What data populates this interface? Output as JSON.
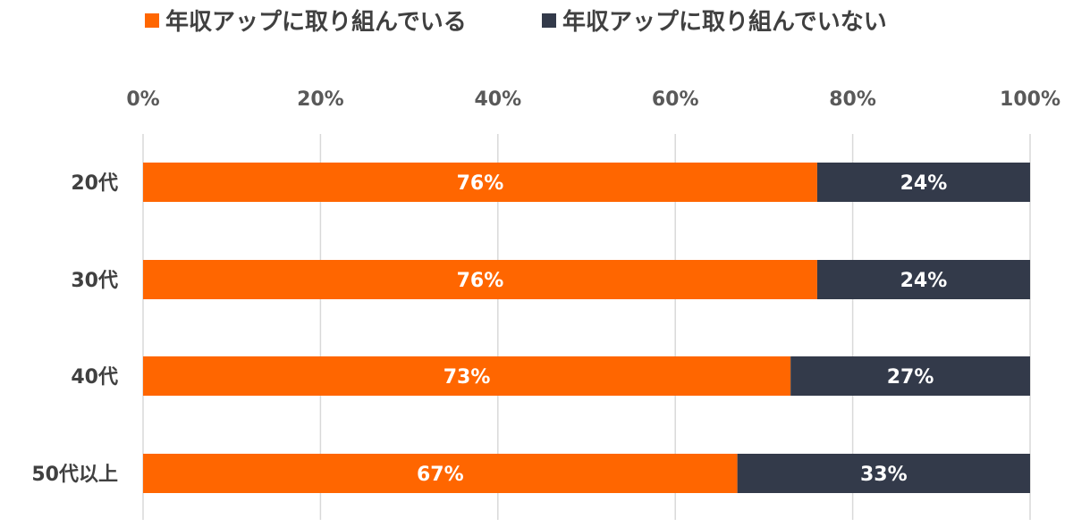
{
  "chart_data": {
    "type": "bar",
    "orientation": "horizontal",
    "stacked": true,
    "categories": [
      "20代",
      "30代",
      "40代",
      "50代以上"
    ],
    "series": [
      {
        "name": "年収アップに取り組んでいる",
        "values": [
          76,
          76,
          73,
          67
        ],
        "labels": [
          "76%",
          "76%",
          "73%",
          "67%"
        ],
        "color": "#ff6600"
      },
      {
        "name": "年収アップに取り組んでいない",
        "values": [
          24,
          24,
          27,
          33
        ],
        "labels": [
          "24%",
          "24%",
          "27%",
          "33%"
        ],
        "color": "#333a4a"
      }
    ],
    "xlim": [
      0,
      100
    ],
    "x_ticks": [
      "0%",
      "20%",
      "40%",
      "60%",
      "80%",
      "100%"
    ],
    "x_axis_position": "top",
    "legend_position": "top",
    "grid": true
  }
}
